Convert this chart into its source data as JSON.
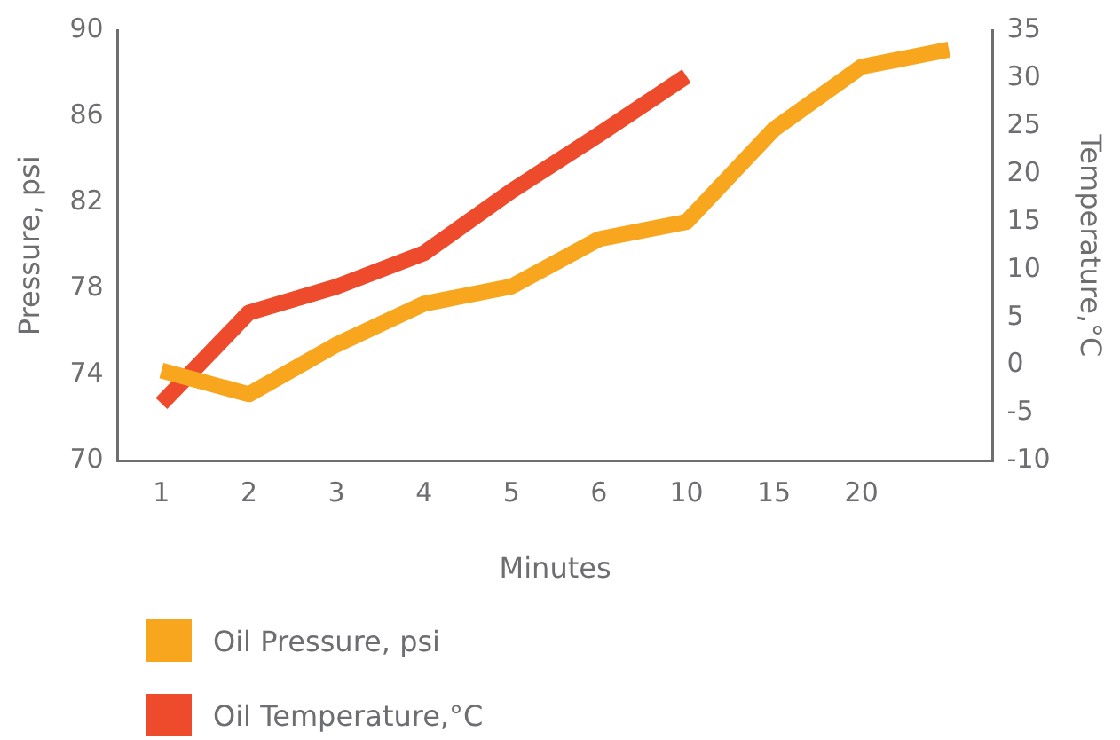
{
  "chart_data": {
    "type": "line",
    "xlabel": "Minutes",
    "ylabel": "Pressure, psi",
    "y2label": "Temperature,°C",
    "categories": [
      "1",
      "2",
      "3",
      "4",
      "5",
      "6",
      "10",
      "15",
      "20",
      null
    ],
    "series": [
      {
        "name": "Oil Pressure, psi",
        "color": "#f8a61e",
        "values": [
          74.2,
          73.1,
          75.4,
          77.3,
          78.1,
          80.3,
          81.1,
          85.4,
          88.3,
          89.1
        ]
      },
      {
        "name": "Oil Temperature,°C",
        "color": "#ee4a2c",
        "axis": "y2",
        "values": [
          -4.0,
          5.5,
          8.2,
          11.7,
          18.2,
          24.1,
          30.2,
          null,
          null,
          null
        ]
      }
    ],
    "ylim": [
      70,
      90
    ],
    "yticks": [
      70,
      74,
      78,
      82,
      86,
      90
    ],
    "y2lim": [
      -10,
      35
    ],
    "y2ticks": [
      -10,
      -5,
      0,
      5,
      10,
      15,
      20,
      25,
      30,
      35
    ],
    "grid": false,
    "legend": "bottom",
    "marker": "none",
    "line_style": "solid"
  }
}
